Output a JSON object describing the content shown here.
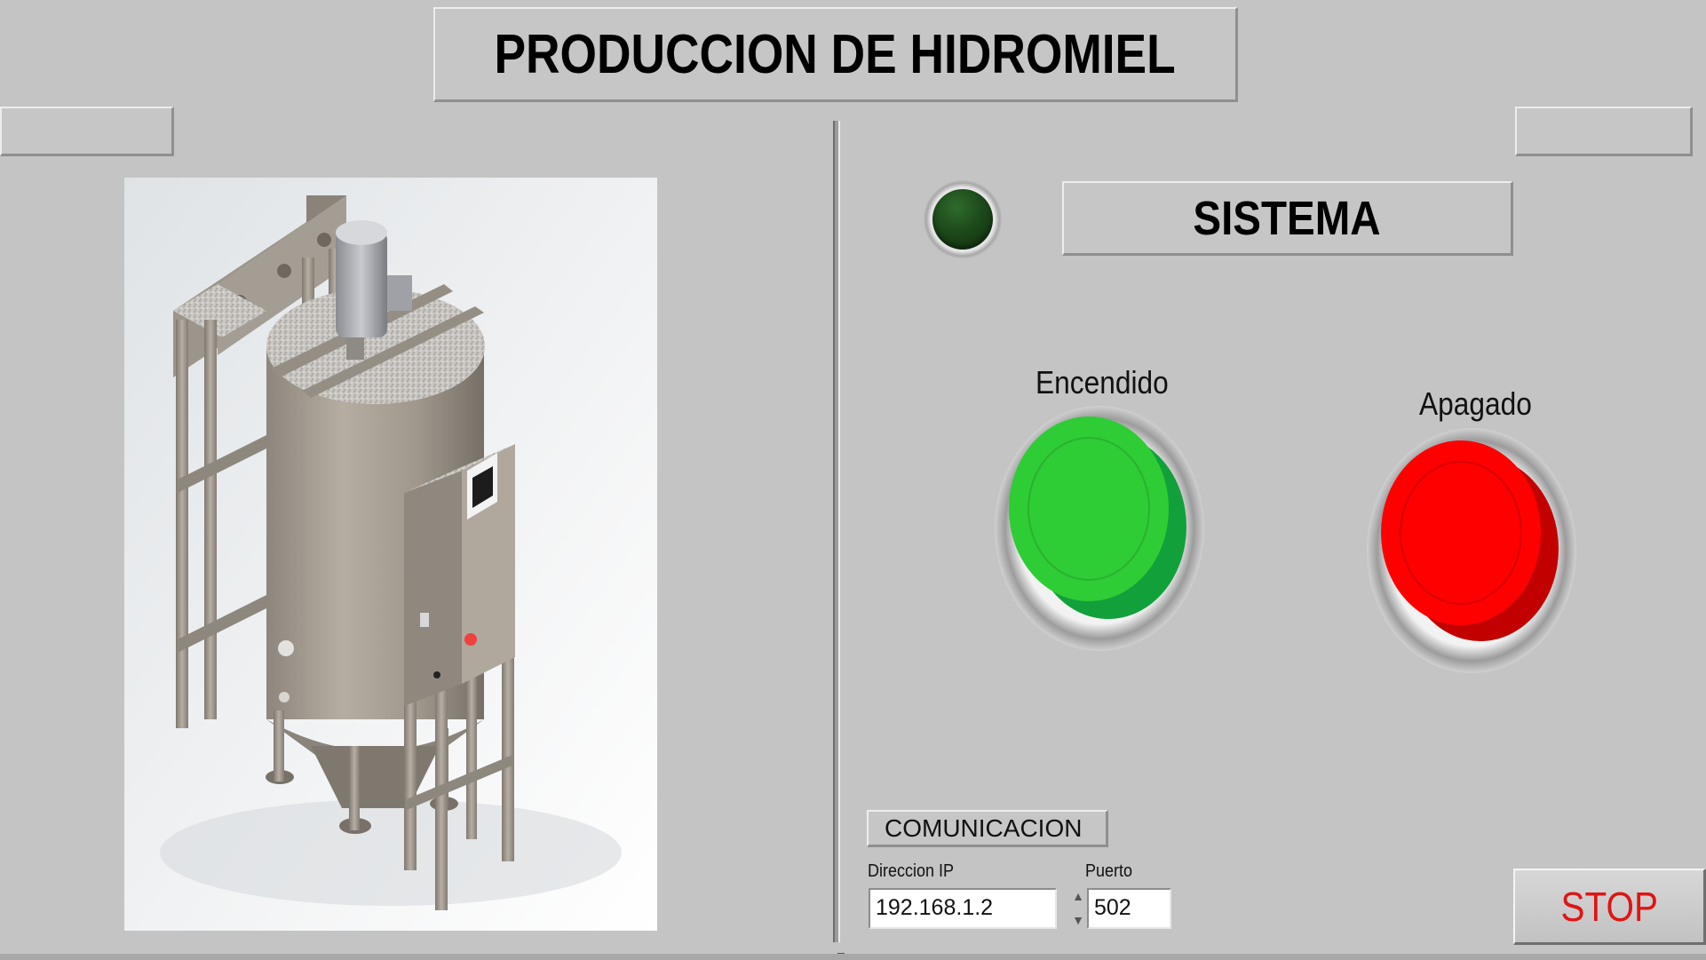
{
  "header": {
    "title": "PRODUCCION DE HIDROMIEL"
  },
  "status": {
    "label": "SISTEMA",
    "indicator_state": "off",
    "indicator_color": "#1d4a1b"
  },
  "controls": {
    "on_label": "Encendido",
    "on_color": "#2ecc35",
    "off_label": "Apagado",
    "off_color": "#ff0000"
  },
  "communication": {
    "group_label": "COMUNICACION",
    "ip_label": "Direccion IP",
    "ip_value": "192.168.1.2",
    "port_label": "Puerto",
    "port_value": "502"
  },
  "stop_button": {
    "label": "STOP",
    "color": "#e01515"
  }
}
